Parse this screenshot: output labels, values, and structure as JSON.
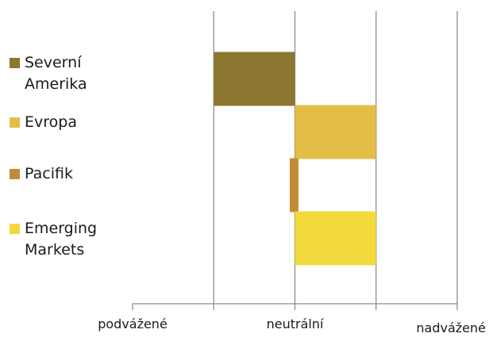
{
  "chart_data": {
    "type": "bar",
    "orientation": "horizontal",
    "categories": [
      "Severní Amerika",
      "Evropa",
      "Pacifik",
      "Emerging Markets"
    ],
    "values": [
      -1,
      1,
      -0.05,
      1
    ],
    "series_colors": [
      "#8b7730",
      "#e3bd45",
      "#c08d35",
      "#f2d93c"
    ],
    "xlim": [
      -2,
      2
    ],
    "xticks": [
      -2,
      -1,
      0,
      1,
      2
    ],
    "tick_labels": [
      "podvážené",
      "",
      "neutrální",
      "",
      "nadvážené"
    ],
    "grid": true,
    "legend_position": "left"
  }
}
